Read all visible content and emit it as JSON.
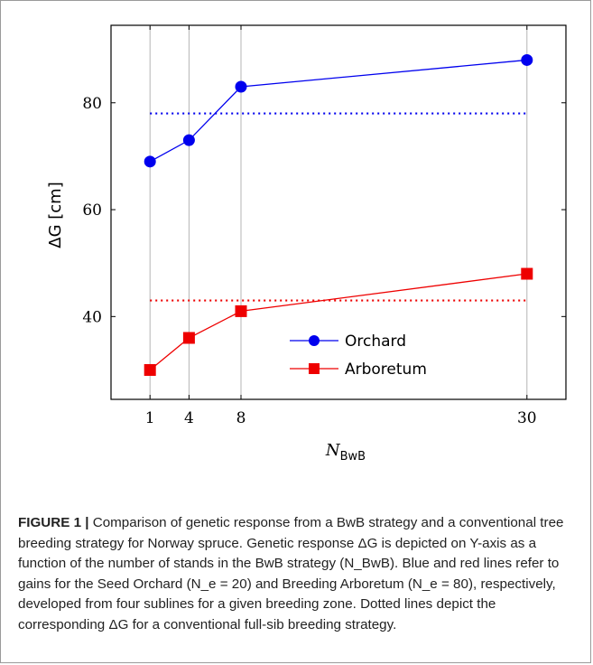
{
  "chart_data": {
    "type": "line",
    "x_ticks": [
      1,
      4,
      8,
      30
    ],
    "y_ticks": [
      40,
      60,
      80
    ],
    "xlim": [
      -2,
      33
    ],
    "ylim": [
      24.5,
      94.5
    ],
    "xlabel_base": "N",
    "xlabel_sub": "BwB",
    "ylabel": "ΔG [cm]",
    "grid": "vertical-at-x-ticks",
    "legend_position": "bottom-right",
    "series": [
      {
        "name": "Orchard",
        "color": "#0000ee",
        "marker": "circle",
        "x": [
          1,
          4,
          8,
          30
        ],
        "y": [
          69,
          73,
          83,
          88
        ]
      },
      {
        "name": "Arboretum",
        "color": "#ee0000",
        "marker": "square",
        "x": [
          1,
          4,
          8,
          30
        ],
        "y": [
          30,
          36,
          41,
          48
        ]
      }
    ],
    "reference_lines": [
      {
        "color": "#0000ee",
        "style": "dotted",
        "y": 78,
        "x_range": [
          1,
          30
        ]
      },
      {
        "color": "#ee0000",
        "style": "dotted",
        "y": 43,
        "x_range": [
          1,
          30
        ]
      }
    ]
  },
  "caption": {
    "label": "FIGURE 1 |",
    "text": " Comparison of genetic response from a BwB strategy and a conventional tree breeding strategy for Norway spruce. Genetic response ΔG is depicted on Y-axis as a function of the number of stands in the BwB strategy (N_BwB). Blue and red lines refer to gains for the Seed Orchard (N_e = 20) and Breeding Arboretum (N_e = 80), respectively, developed from four sublines for a given breeding zone. Dotted lines depict the corresponding ΔG for a conventional full-sib breeding strategy."
  }
}
